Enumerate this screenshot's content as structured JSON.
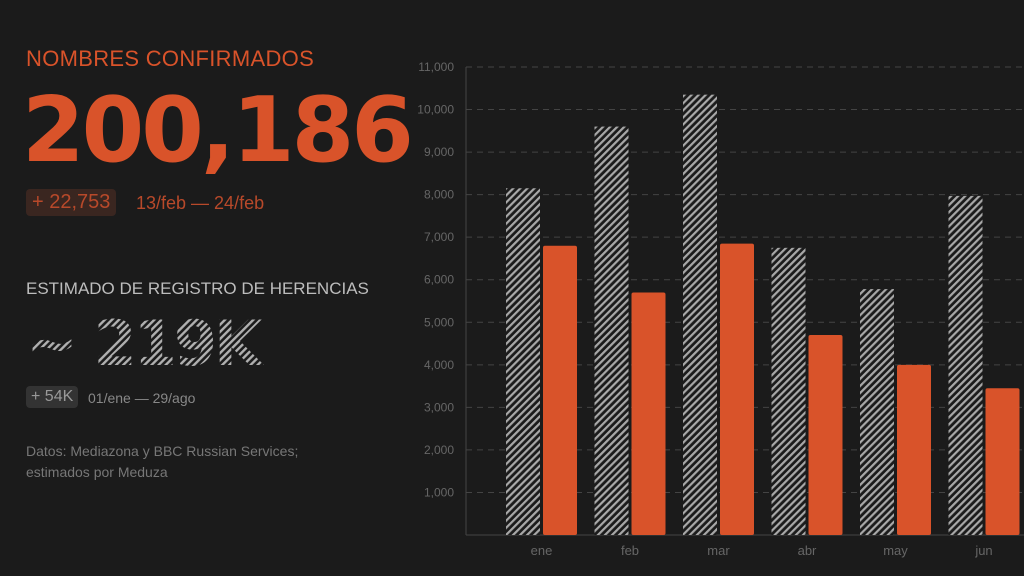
{
  "confirmed": {
    "label": "NOMBRES CONFIRMADOS",
    "value": "200,186",
    "delta": "+ 22,753",
    "range": "13/feb — 24/feb"
  },
  "estimated": {
    "label": "ESTIMADO DE REGISTRO DE HERENCIAS",
    "value": "~ 219K",
    "delta": "+ 54K",
    "range": "01/ene — 29/ago"
  },
  "source": "Datos: Mediazona y BBC Russian Services; estimados por Meduza",
  "colors": {
    "background": "#1b1b1b",
    "accent": "#d9532a",
    "hatch": "#a8a8a8"
  },
  "chart_data": {
    "type": "bar",
    "categories": [
      "ene",
      "feb",
      "mar",
      "abr",
      "may",
      "jun"
    ],
    "series": [
      {
        "style": "hatched",
        "color": "#a8a8a8",
        "values": [
          8150,
          9600,
          10350,
          6750,
          5780,
          7970
        ]
      },
      {
        "style": "solid",
        "color": "#d9532a",
        "values": [
          6800,
          5700,
          6850,
          4700,
          4000,
          3450
        ]
      }
    ],
    "ylim": [
      0,
      11000
    ],
    "yticks": [
      1000,
      2000,
      3000,
      4000,
      5000,
      6000,
      7000,
      8000,
      9000,
      10000,
      11000
    ],
    "ytick_labels": [
      "1,000",
      "2,000",
      "3,000",
      "4,000",
      "5,000",
      "6,000",
      "7,000",
      "8,000",
      "9,000",
      "10,000",
      "11,000"
    ],
    "grid": true,
    "legend": "none"
  }
}
